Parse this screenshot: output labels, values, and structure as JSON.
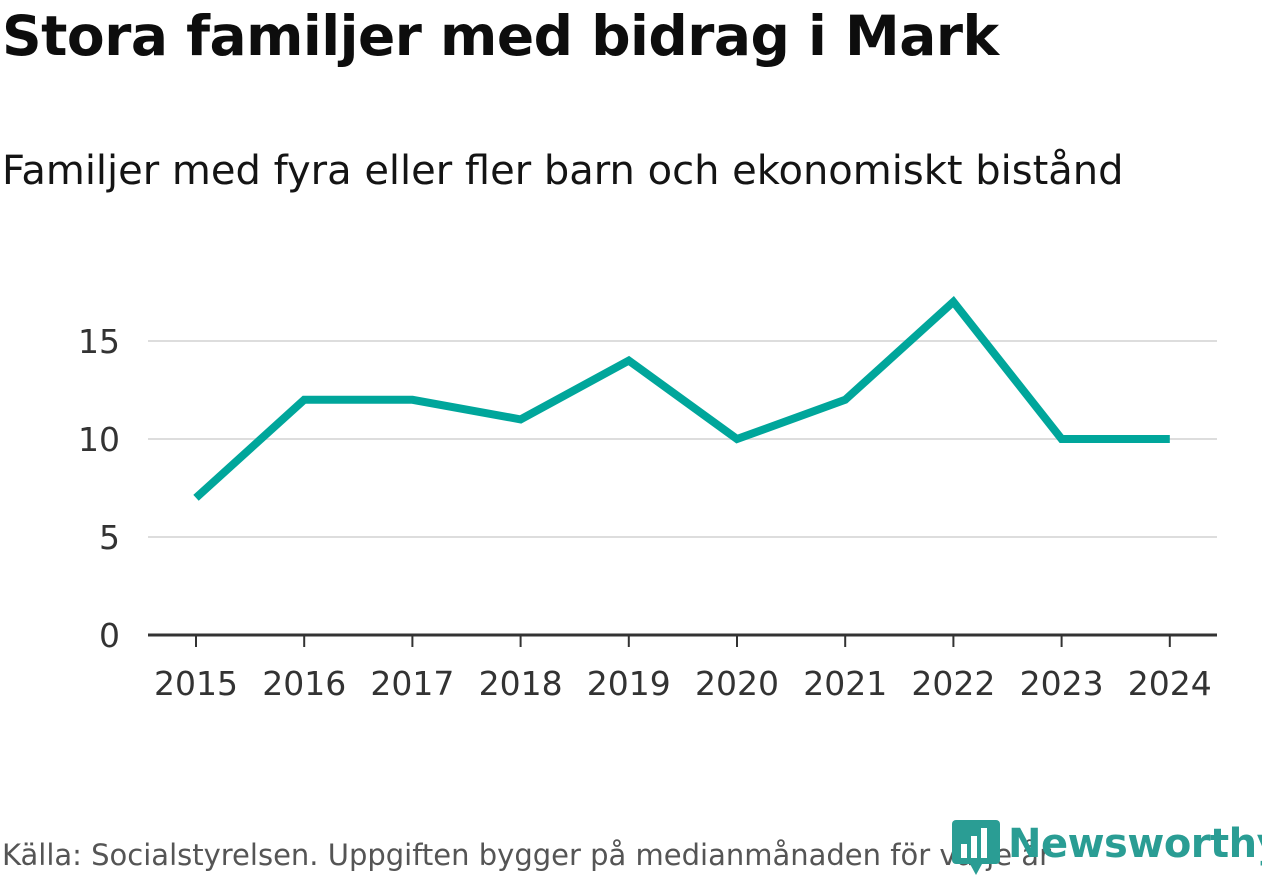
{
  "chart_data": {
    "type": "line",
    "title": "Stora familjer med bidrag i Mark",
    "subtitle": "Familjer med fyra eller fler barn och ekonomiskt bistånd",
    "xlabel": "",
    "ylabel": "",
    "x": [
      "2015",
      "2016",
      "2017",
      "2018",
      "2019",
      "2020",
      "2021",
      "2022",
      "2023",
      "2024"
    ],
    "series": [
      {
        "values": [
          7,
          12,
          12,
          11,
          14,
          10,
          12,
          17,
          10,
          10
        ]
      }
    ],
    "ylim": [
      0,
      18
    ],
    "yticks": [
      0,
      5,
      10,
      15
    ],
    "grid": true,
    "line_color": "#00a69b",
    "grid_color": "#dddddd",
    "axis_color": "#333333"
  },
  "footer": {
    "source": "Källa: Socialstyrelsen. Uppgiften bygger på medianmånaden för varje år"
  },
  "brand": {
    "name": "Newsworthy",
    "color": "#2a9d94",
    "icon": "newsworthy-logo-icon"
  }
}
